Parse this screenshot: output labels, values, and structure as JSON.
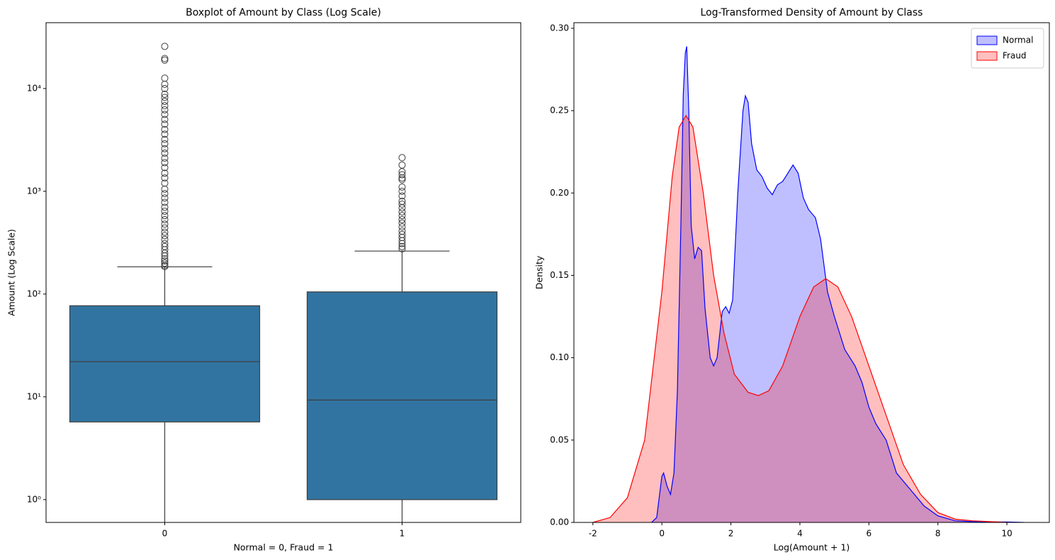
{
  "chart_data": [
    {
      "type": "box",
      "title": "Boxplot of Amount by Class (Log Scale)",
      "x_label": "Normal = 0, Fraud = 1",
      "y_label": "Amount (Log Scale)",
      "categories": [
        "0",
        "1"
      ],
      "color": "#3274a1",
      "yscale": "log",
      "ylim": [
        0.6,
        43700
      ],
      "yticks": [
        {
          "value": 1,
          "label": "10⁰"
        },
        {
          "value": 10,
          "label": "10¹"
        },
        {
          "value": 100,
          "label": "10²"
        },
        {
          "value": 1000,
          "label": "10³"
        },
        {
          "value": 10000,
          "label": "10⁴"
        }
      ],
      "boxes": [
        {
          "whisker_low": 0,
          "q1": 5.7,
          "median": 22,
          "q3": 77,
          "whisker_high": 184,
          "outliers": [
            185,
            190,
            200,
            210,
            220,
            235,
            250,
            270,
            290,
            310,
            340,
            370,
            400,
            440,
            480,
            530,
            580,
            640,
            700,
            780,
            860,
            950,
            1050,
            1200,
            1350,
            1500,
            1700,
            1900,
            2100,
            2350,
            2600,
            2900,
            3200,
            3600,
            4000,
            4500,
            5000,
            5600,
            6200,
            6800,
            7500,
            8200,
            8800,
            10000,
            11000,
            12600,
            18900,
            19600,
            25700
          ]
        },
        {
          "whisker_low": 0,
          "q1": 1,
          "median": 9.3,
          "q3": 105,
          "whisker_high": 262,
          "outliers": [
            275,
            290,
            310,
            330,
            355,
            380,
            410,
            450,
            490,
            530,
            580,
            630,
            690,
            750,
            800,
            900,
            1000,
            1100,
            1300,
            1350,
            1450,
            1550,
            1800,
            2125
          ]
        }
      ]
    },
    {
      "type": "density",
      "title": "Log-Transformed Density of Amount by Class",
      "x_label": "Log(Amount + 1)",
      "y_label": "Density",
      "xlim": [
        -2.55,
        11.23
      ],
      "xticks": [
        -2,
        0,
        2,
        4,
        6,
        8,
        10
      ],
      "ylim": [
        0,
        0.3034
      ],
      "yticks": [
        {
          "value": 0,
          "label": "0.00"
        },
        {
          "value": 0.05,
          "label": "0.05"
        },
        {
          "value": 0.1,
          "label": "0.10"
        },
        {
          "value": 0.15,
          "label": "0.15"
        },
        {
          "value": 0.2,
          "label": "0.20"
        },
        {
          "value": 0.25,
          "label": "0.25"
        },
        {
          "value": 0.3,
          "label": "0.30"
        }
      ],
      "legend": "upper right",
      "series": [
        {
          "name": "Normal",
          "color": "#0000ff",
          "x": [
            -0.3,
            -0.15,
            0,
            0.05,
            0.15,
            0.25,
            0.35,
            0.45,
            0.55,
            0.62,
            0.68,
            0.72,
            0.78,
            0.85,
            0.95,
            1.05,
            1.15,
            1.25,
            1.4,
            1.5,
            1.6,
            1.75,
            1.85,
            1.95,
            2.05,
            2.2,
            2.35,
            2.42,
            2.5,
            2.6,
            2.75,
            2.9,
            3.05,
            3.2,
            3.35,
            3.5,
            3.65,
            3.8,
            3.95,
            4.1,
            4.25,
            4.45,
            4.6,
            4.8,
            5.0,
            5.3,
            5.6,
            5.8,
            6.0,
            6.2,
            6.5,
            6.8,
            7.2,
            7.6,
            8.0,
            8.5,
            9.0,
            9.5,
            10.0,
            10.5
          ],
          "values": [
            0,
            0.003,
            0.028,
            0.03,
            0.022,
            0.017,
            0.03,
            0.08,
            0.18,
            0.26,
            0.285,
            0.289,
            0.25,
            0.18,
            0.16,
            0.167,
            0.165,
            0.13,
            0.1,
            0.095,
            0.1,
            0.128,
            0.131,
            0.127,
            0.135,
            0.2,
            0.25,
            0.259,
            0.255,
            0.23,
            0.214,
            0.21,
            0.203,
            0.199,
            0.205,
            0.207,
            0.212,
            0.217,
            0.212,
            0.197,
            0.19,
            0.185,
            0.172,
            0.14,
            0.125,
            0.105,
            0.095,
            0.085,
            0.07,
            0.06,
            0.05,
            0.03,
            0.02,
            0.01,
            0.004,
            0.001,
            0.0005,
            0.0003,
            0.0003,
            0
          ]
        },
        {
          "name": "Fraud",
          "color": "#ff0000",
          "x": [
            -2,
            -1.5,
            -1,
            -0.5,
            0,
            0.3,
            0.5,
            0.7,
            0.9,
            1.2,
            1.5,
            1.8,
            2.1,
            2.5,
            2.8,
            3.1,
            3.5,
            4.0,
            4.4,
            4.75,
            5.1,
            5.5,
            6.0,
            6.5,
            7.0,
            7.5,
            8.0,
            8.5,
            9.0,
            10.0
          ],
          "values": [
            0,
            0.003,
            0.015,
            0.05,
            0.14,
            0.21,
            0.24,
            0.247,
            0.24,
            0.2,
            0.15,
            0.115,
            0.09,
            0.079,
            0.077,
            0.08,
            0.095,
            0.125,
            0.143,
            0.148,
            0.143,
            0.125,
            0.095,
            0.065,
            0.035,
            0.017,
            0.006,
            0.002,
            0.001,
            0
          ]
        }
      ]
    }
  ]
}
